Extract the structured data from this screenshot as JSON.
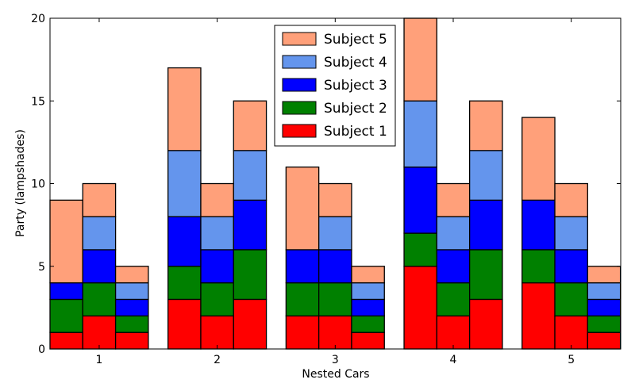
{
  "chart_data": {
    "type": "bar",
    "stacked": true,
    "grouped": true,
    "xlabel": "Nested Cars",
    "ylabel": "Party (lampshades)",
    "ylim": [
      0,
      20
    ],
    "yticks": [
      0,
      5,
      10,
      15,
      20
    ],
    "grid": false,
    "legend_position": "top-center",
    "categories": [
      "1",
      "2",
      "3",
      "4",
      "5"
    ],
    "series": [
      {
        "name": "Subject 1",
        "color": "#ff0000"
      },
      {
        "name": "Subject 2",
        "color": "#008000"
      },
      {
        "name": "Subject 3",
        "color": "#0000ff"
      },
      {
        "name": "Subject 4",
        "color": "#6495ed"
      },
      {
        "name": "Subject 5",
        "color": "#ffa07a"
      }
    ],
    "groups": [
      {
        "category": "1",
        "bars": [
          [
            1,
            2,
            1,
            0,
            5
          ],
          [
            2,
            2,
            2,
            2,
            2
          ],
          [
            1,
            1,
            1,
            1,
            1
          ]
        ]
      },
      {
        "category": "2",
        "bars": [
          [
            3,
            2,
            3,
            4,
            5
          ],
          [
            2,
            2,
            2,
            2,
            2
          ],
          [
            3,
            3,
            3,
            3,
            3
          ]
        ]
      },
      {
        "category": "3",
        "bars": [
          [
            2,
            2,
            2,
            0,
            5
          ],
          [
            2,
            2,
            2,
            2,
            2
          ],
          [
            1,
            1,
            1,
            1,
            1
          ]
        ]
      },
      {
        "category": "4",
        "bars": [
          [
            5,
            2,
            4,
            4,
            5
          ],
          [
            2,
            2,
            2,
            2,
            2
          ],
          [
            3,
            3,
            3,
            3,
            3
          ]
        ]
      },
      {
        "category": "5",
        "bars": [
          [
            4,
            2,
            3,
            0,
            5
          ],
          [
            2,
            2,
            2,
            2,
            2
          ],
          [
            1,
            1,
            1,
            1,
            1
          ]
        ]
      }
    ]
  }
}
